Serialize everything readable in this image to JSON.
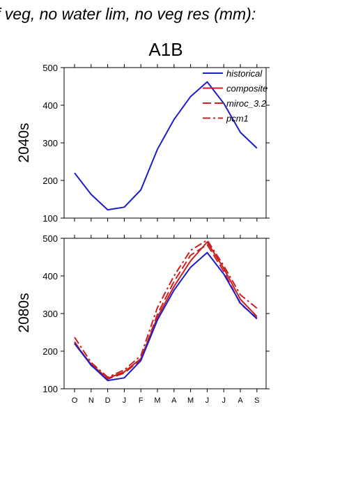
{
  "title": "f veg, no water lim, no veg res (mm):",
  "subtitle": "A1B",
  "colors": {
    "historical": "#1c1cc8",
    "scenario": "#c82020"
  },
  "chart_data": [
    {
      "type": "line",
      "row_label": "2040s",
      "categories": [
        "O",
        "N",
        "D",
        "J",
        "F",
        "M",
        "A",
        "M",
        "J",
        "J",
        "A",
        "S"
      ],
      "ylim": [
        100,
        500
      ],
      "yticks": [
        100,
        200,
        300,
        400,
        500
      ],
      "legend_position": "top-right",
      "legend": [
        "historical",
        "composite",
        "miroc_3.2",
        "pcm1"
      ],
      "series": [
        {
          "name": "historical",
          "color": "#1c1cc8",
          "dash": "solid",
          "values": [
            220,
            163,
            122,
            129,
            175,
            283,
            362,
            423,
            462,
            405,
            328,
            286
          ]
        }
      ]
    },
    {
      "type": "line",
      "row_label": "2080s",
      "categories": [
        "O",
        "N",
        "D",
        "J",
        "F",
        "M",
        "A",
        "M",
        "J",
        "J",
        "A",
        "S"
      ],
      "ylim": [
        100,
        500
      ],
      "yticks": [
        100,
        200,
        300,
        400,
        500
      ],
      "series": [
        {
          "name": "historical",
          "color": "#1c1cc8",
          "dash": "solid",
          "values": [
            220,
            163,
            122,
            129,
            175,
            283,
            362,
            423,
            462,
            405,
            328,
            286
          ]
        },
        {
          "name": "composite",
          "color": "#c82020",
          "dash": "solid",
          "values": [
            222,
            165,
            128,
            145,
            180,
            290,
            372,
            440,
            490,
            420,
            338,
            292
          ]
        },
        {
          "name": "miroc_3.2",
          "color": "#c82020",
          "dash": "dash",
          "values": [
            225,
            162,
            126,
            142,
            177,
            298,
            385,
            455,
            483,
            412,
            326,
            288
          ]
        },
        {
          "name": "pcm1",
          "color": "#c82020",
          "dash": "dashdot",
          "values": [
            237,
            170,
            131,
            150,
            188,
            316,
            400,
            468,
            495,
            427,
            350,
            314
          ]
        }
      ]
    }
  ]
}
